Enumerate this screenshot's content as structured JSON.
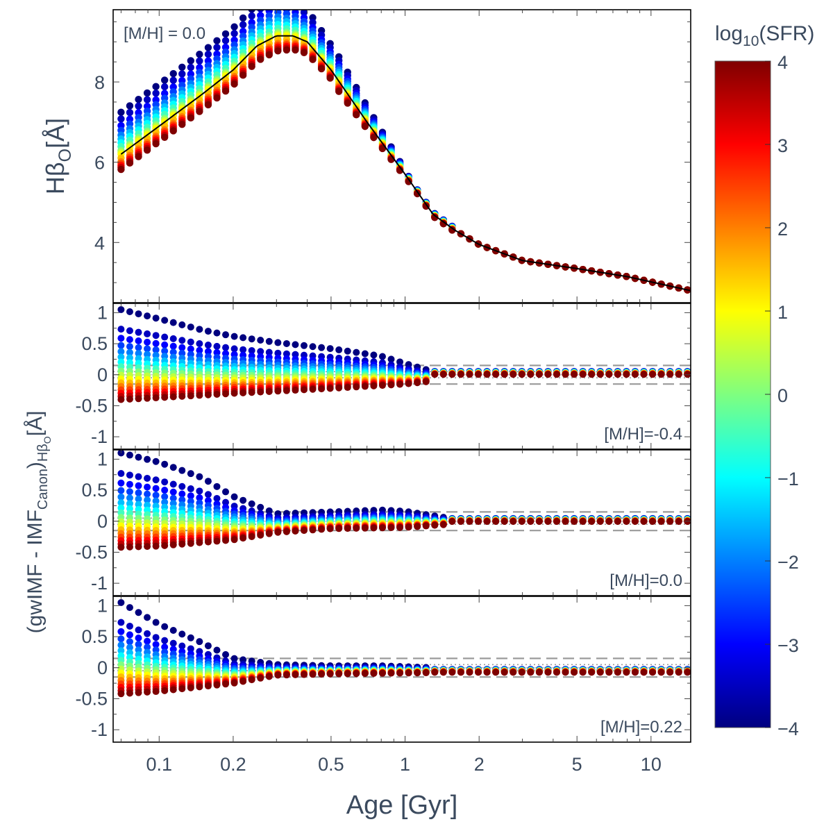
{
  "chart_data": {
    "type": "scatter",
    "description_x": "log-scaled age axis shared by all panels",
    "x_axis": {
      "label": "Age [Gyr]",
      "scale": "log",
      "range": [
        0.065,
        14.5
      ],
      "ticks": [
        0.1,
        0.2,
        0.5,
        1,
        2,
        5,
        10
      ],
      "tick_labels": [
        "0.1",
        "0.2",
        "0.5",
        "1",
        "2",
        "5",
        "10"
      ]
    },
    "colorbar": {
      "label_main": "log",
      "label_sub": "10",
      "label_rest": "(SFR)",
      "range": [
        -4,
        4
      ],
      "ticks": [
        4,
        3,
        2,
        1,
        0,
        -1,
        -2,
        -3,
        -4
      ],
      "tick_labels": [
        "4",
        "3",
        "2",
        "1",
        "0",
        "−1",
        "−2",
        "−3",
        "−4"
      ],
      "colormap": "jet",
      "stops": [
        "#00007f",
        "#0000ff",
        "#007fff",
        "#00ffff",
        "#7fff7f",
        "#ffff00",
        "#ff7f00",
        "#ff0000",
        "#7f0000"
      ]
    },
    "sfr_levels": [
      -4,
      -3,
      -2,
      -1,
      0,
      1,
      2,
      3,
      4
    ],
    "top_panel": {
      "annotation": "[M/H] = 0.0",
      "ylabel_main": "Hβ",
      "ylabel_sub": "O",
      "ylabel_unit": "[Å]",
      "ylim": [
        2.5,
        9.8
      ],
      "yticks": [
        4,
        6,
        8
      ],
      "canonical_curve": {
        "age": [
          0.07,
          0.1,
          0.15,
          0.2,
          0.25,
          0.3,
          0.35,
          0.4,
          0.5,
          0.7,
          1.0,
          1.3,
          1.6,
          2.0,
          3.0,
          5.0,
          8.0,
          14.5
        ],
        "value": [
          6.2,
          6.9,
          7.7,
          8.3,
          8.9,
          9.15,
          9.15,
          9.0,
          8.3,
          7.0,
          5.7,
          4.7,
          4.3,
          3.95,
          3.55,
          3.35,
          3.15,
          2.8
        ]
      },
      "young_offsets_upper": [
        1.1,
        0.75,
        0.5,
        0.3,
        0.1,
        0,
        -0.2,
        -0.3,
        -0.4
      ],
      "taper_age": 0.3
    },
    "residual_ylabel_main": "(gwIMF - IMF",
    "residual_ylabel_sub1": "Canon",
    "residual_ylabel_mid": ")",
    "residual_ylabel_sub2": "Hβ",
    "residual_ylabel_sub3": "O",
    "residual_ylabel_unit": "[Å]",
    "residual_panels": [
      {
        "annotation": "[M/H]=-0.4",
        "ylim": [
          -1.2,
          1.15
        ],
        "yticks": [
          1,
          0.5,
          0,
          -0.5,
          -1
        ],
        "ytick_labels": [
          "1",
          "0.5",
          "0",
          "-0.5",
          "-1"
        ],
        "plateau_age": 1.0,
        "taper_end": 1.3,
        "late_offset": 0.03,
        "top_envelope": {
          "age": [
            0.07,
            0.1,
            0.15,
            0.2,
            0.3,
            0.5,
            0.8,
            1.0,
            1.3
          ],
          "value": [
            1.05,
            0.9,
            0.72,
            0.62,
            0.52,
            0.42,
            0.3,
            0.18,
            0.05
          ]
        },
        "bottom_envelope": {
          "age": [
            0.07,
            0.1,
            0.2,
            0.5,
            1.0,
            1.3
          ],
          "value": [
            -0.4,
            -0.37,
            -0.3,
            -0.22,
            -0.15,
            -0.1
          ]
        }
      },
      {
        "annotation": "[M/H]=0.0",
        "ylim": [
          -1.2,
          1.15
        ],
        "yticks": [
          1,
          0.5,
          0,
          -0.5,
          -1
        ],
        "ytick_labels": [
          "1",
          "0.5",
          "0",
          "-0.5",
          "-1"
        ],
        "plateau_age": 0.3,
        "taper_end": 1.5,
        "late_offset": 0.02,
        "top_envelope": {
          "age": [
            0.07,
            0.1,
            0.15,
            0.2,
            0.3,
            0.5,
            0.8,
            1.0,
            1.5
          ],
          "value": [
            1.1,
            0.95,
            0.7,
            0.4,
            0.12,
            0.15,
            0.18,
            0.16,
            0.05
          ]
        },
        "bottom_envelope": {
          "age": [
            0.07,
            0.1,
            0.2,
            0.3,
            0.5,
            1.0,
            1.5
          ],
          "value": [
            -0.42,
            -0.4,
            -0.3,
            -0.18,
            -0.12,
            -0.1,
            -0.05
          ]
        }
      },
      {
        "annotation": "[M/H]=0.22",
        "ylim": [
          -1.2,
          1.15
        ],
        "yticks": [
          1,
          0.5,
          0,
          -0.5,
          -1
        ],
        "ytick_labels": [
          "1",
          "0.5",
          "0",
          "-0.5",
          "-1"
        ],
        "plateau_age": 0.22,
        "taper_end": 1.3,
        "late_offset": -0.05,
        "top_envelope": {
          "age": [
            0.07,
            0.1,
            0.15,
            0.2,
            0.3,
            0.5,
            0.8,
            1.3
          ],
          "value": [
            1.05,
            0.7,
            0.4,
            0.15,
            0.05,
            0.03,
            0.03,
            0.0
          ]
        },
        "bottom_envelope": {
          "age": [
            0.07,
            0.1,
            0.2,
            0.3,
            0.5,
            1.3
          ],
          "value": [
            -0.42,
            -0.38,
            -0.25,
            -0.12,
            -0.1,
            -0.08
          ]
        }
      }
    ],
    "dashed_band": [
      -0.15,
      0.15
    ],
    "dotted_band": [
      -0.05,
      0.05
    ]
  }
}
